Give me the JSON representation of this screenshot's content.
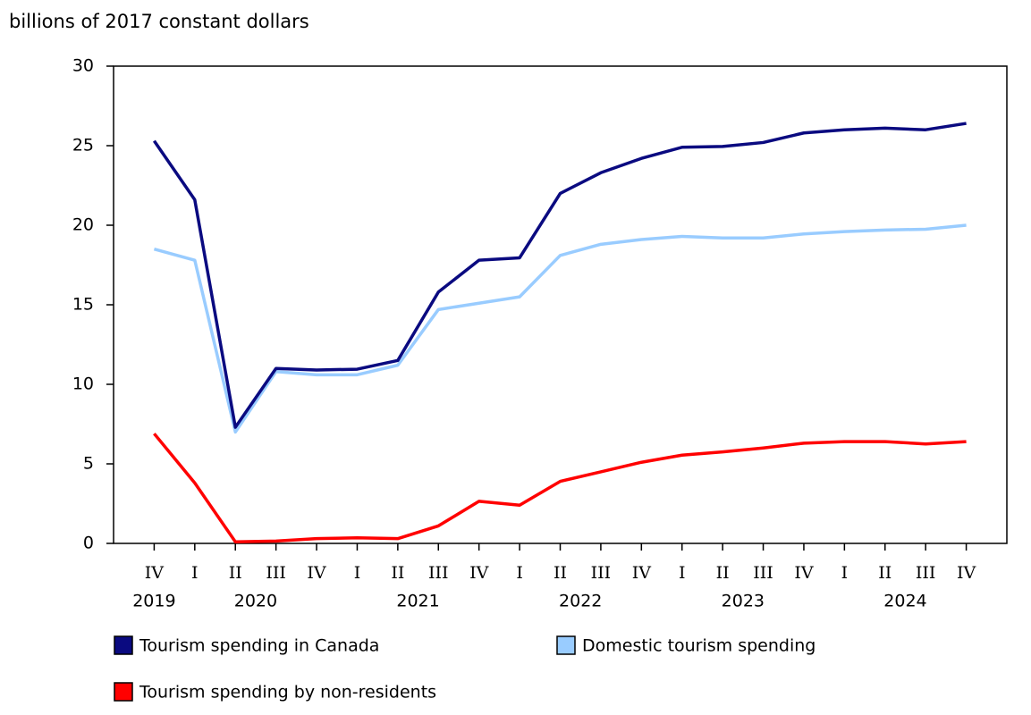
{
  "chart_data": {
    "type": "line",
    "y_label": "billions of 2017 constant dollars",
    "categories": [
      "IV",
      "I",
      "II",
      "III",
      "IV",
      "I",
      "II",
      "III",
      "IV",
      "I",
      "II",
      "III",
      "IV",
      "I",
      "II",
      "III",
      "IV",
      "I",
      "II",
      "III",
      "IV"
    ],
    "x_groups": [
      {
        "label": "2019",
        "size": 1
      },
      {
        "label": "2020",
        "size": 4
      },
      {
        "label": "2021",
        "size": 4
      },
      {
        "label": "2022",
        "size": 4
      },
      {
        "label": "2023",
        "size": 4
      },
      {
        "label": "2024",
        "size": 4
      }
    ],
    "series": [
      {
        "name": "Tourism spending in Canada",
        "color": "#0a0a80",
        "values": [
          25.3,
          21.6,
          7.3,
          11.0,
          10.9,
          10.95,
          11.5,
          15.8,
          17.8,
          17.95,
          22.0,
          23.3,
          24.2,
          24.9,
          24.95,
          25.2,
          25.8,
          26.0,
          26.1,
          26.0,
          26.4
        ]
      },
      {
        "name": "Domestic tourism spending",
        "color": "#99ccff",
        "values": [
          18.5,
          17.8,
          7.0,
          10.8,
          10.6,
          10.6,
          11.2,
          14.7,
          15.1,
          15.5,
          18.1,
          18.8,
          19.1,
          19.3,
          19.2,
          19.2,
          19.45,
          19.6,
          19.7,
          19.75,
          20.0
        ]
      },
      {
        "name": "Tourism spending by non-residents",
        "color": "#ff0000",
        "values": [
          6.9,
          3.8,
          0.1,
          0.15,
          0.3,
          0.35,
          0.3,
          1.1,
          2.65,
          2.4,
          3.9,
          4.5,
          5.1,
          5.55,
          5.75,
          6.0,
          6.3,
          6.4,
          6.4,
          6.25,
          6.4
        ]
      }
    ],
    "ylim": [
      0,
      30
    ],
    "yticks": [
      0,
      5,
      10,
      15,
      20,
      25,
      30
    ],
    "grid": false
  }
}
